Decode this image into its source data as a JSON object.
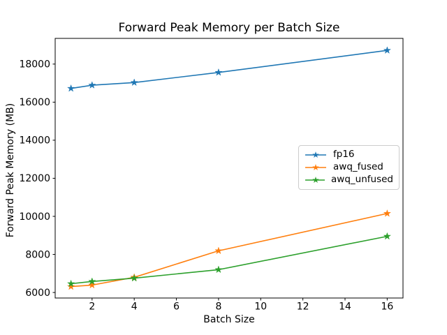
{
  "figure": {
    "background_color": "#ffffff",
    "spine_color": "#000000",
    "legend_border_color": "#cccccc"
  },
  "chart_data": {
    "type": "line",
    "title": "Forward Peak Memory per Batch Size",
    "xlabel": "Batch Size",
    "ylabel": "Forward Peak Memory (MB)",
    "x": [
      1,
      2,
      4,
      8,
      16
    ],
    "series": [
      {
        "name": "fp16",
        "color": "#1f77b4",
        "marker": "star",
        "values": [
          16720,
          16890,
          17030,
          17560,
          18720
        ]
      },
      {
        "name": "awq_fused",
        "color": "#ff7f0e",
        "marker": "star",
        "values": [
          6310,
          6390,
          6800,
          8190,
          10150
        ]
      },
      {
        "name": "awq_unfused",
        "color": "#2ca02c",
        "marker": "star",
        "values": [
          6460,
          6580,
          6750,
          7200,
          8950
        ]
      }
    ],
    "xlim": [
      0.25,
      16.75
    ],
    "ylim": [
      5710,
      19350
    ],
    "xticks": [
      2,
      4,
      6,
      8,
      10,
      12,
      14,
      16
    ],
    "yticks": [
      6000,
      8000,
      10000,
      12000,
      14000,
      16000,
      18000
    ],
    "grid": false,
    "legend_position": "center-right"
  }
}
